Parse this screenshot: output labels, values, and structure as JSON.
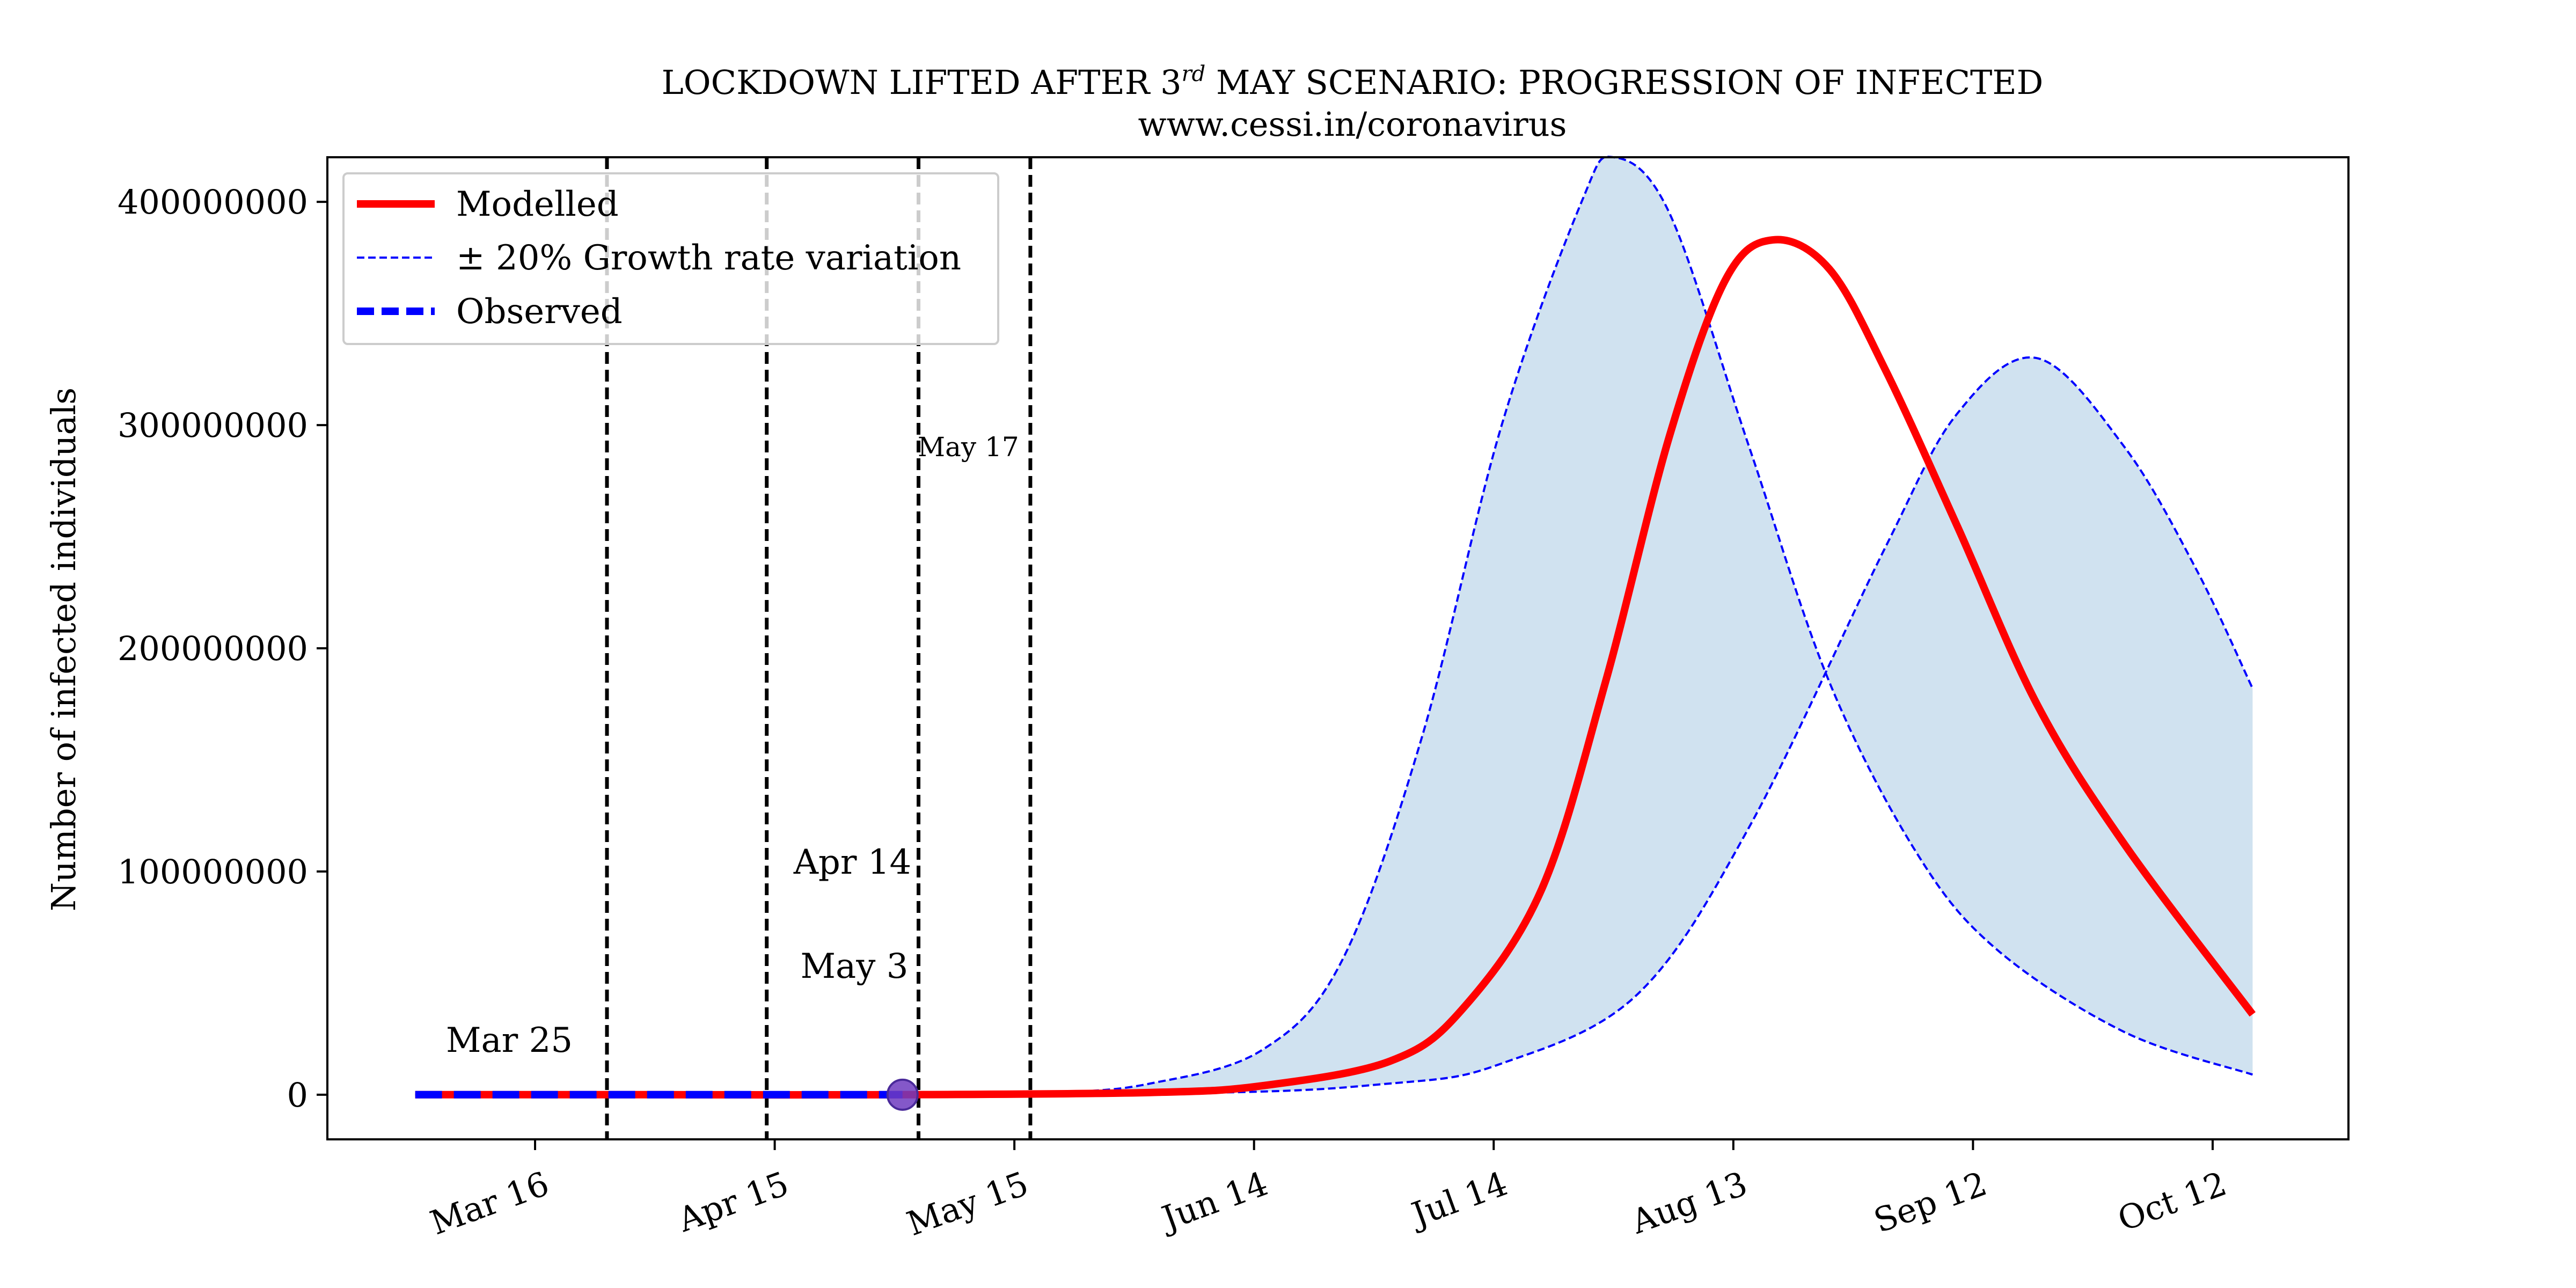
{
  "chart_data": {
    "type": "line",
    "title_main": "LOCKDOWN LIFTED AFTER 3",
    "title_sup": "rd",
    "title_rest": " MAY SCENARIO: PROGRESSION OF INFECTED",
    "subtitle": "www.cessi.in/coronavirus",
    "xlabel": "",
    "ylabel": "Number of infected individuals",
    "ylim": [
      -20000000,
      420000000
    ],
    "yticks": [
      0,
      100000000,
      200000000,
      300000000,
      400000000
    ],
    "ytick_labels": [
      "0",
      "100000000",
      "200000000",
      "300000000",
      "400000000"
    ],
    "xlim": [
      "2020-02-19",
      "2020-10-29"
    ],
    "xticks": [
      "2020-03-16",
      "2020-04-15",
      "2020-05-15",
      "2020-06-14",
      "2020-07-14",
      "2020-08-13",
      "2020-09-12",
      "2020-10-12"
    ],
    "xtick_labels": [
      "Mar 16",
      "Apr 15",
      "May 15",
      "Jun 14",
      "Jul 14",
      "Aug 13",
      "Sep 12",
      "Oct 12"
    ],
    "grid": false,
    "legend_position": "top-left",
    "legend": [
      {
        "label": "Modelled",
        "style": "solid",
        "color": "#ff0000"
      },
      {
        "label": "± 20% Growth rate variation",
        "style": "dashed-thin",
        "color": "#0000ff"
      },
      {
        "label": "Observed",
        "style": "dashed-thick",
        "color": "#0000ff"
      }
    ],
    "vlines": [
      {
        "date": "2020-03-25",
        "label": "Mar 25"
      },
      {
        "date": "2020-04-14",
        "label": "Apr 14"
      },
      {
        "date": "2020-05-03",
        "label": "May 3"
      },
      {
        "date": "2020-05-17",
        "label": "May 17"
      }
    ],
    "marker": {
      "date": "2020-05-01",
      "value": 0,
      "color": "#6f3bbf"
    },
    "fill_color": "#d0e2f0",
    "series": [
      {
        "name": "Modelled",
        "color": "#ff0000",
        "x": [
          "2020-03-01",
          "2020-04-01",
          "2020-05-01",
          "2020-06-01",
          "2020-06-15",
          "2020-07-01",
          "2020-07-10",
          "2020-07-20",
          "2020-07-28",
          "2020-08-05",
          "2020-08-12",
          "2020-08-18",
          "2020-08-25",
          "2020-09-01",
          "2020-09-10",
          "2020-09-20",
          "2020-10-01",
          "2020-10-17"
        ],
        "values": [
          0,
          0,
          0,
          1000000,
          4000000,
          15000000,
          38000000,
          92000000,
          185000000,
          295000000,
          365000000,
          383000000,
          370000000,
          325000000,
          255000000,
          175000000,
          112000000,
          36000000
        ]
      },
      {
        "name": "± 20% Growth rate variation",
        "color": "#0000ff",
        "x": [
          "2020-03-01",
          "2020-05-01",
          "2020-05-20",
          "2020-06-01",
          "2020-06-15",
          "2020-06-25",
          "2020-07-05",
          "2020-07-15",
          "2020-07-25",
          "2020-07-29",
          "2020-08-05",
          "2020-08-15",
          "2020-08-25",
          "2020-09-05",
          "2020-09-15",
          "2020-10-01",
          "2020-10-17"
        ],
        "values": [
          0,
          0,
          1000000,
          5000000,
          20000000,
          60000000,
          160000000,
          300000000,
          400000000,
          420000000,
          395000000,
          290000000,
          185000000,
          108000000,
          65000000,
          28000000,
          9000000
        ]
      },
      {
        "name": "± 20% Growth rate variation",
        "color": "#0000ff",
        "x": [
          "2020-03-01",
          "2020-06-01",
          "2020-07-01",
          "2020-07-15",
          "2020-08-01",
          "2020-08-15",
          "2020-09-01",
          "2020-09-10",
          "2020-09-20",
          "2020-10-01",
          "2020-10-10",
          "2020-10-17"
        ],
        "values": [
          0,
          500000,
          5000000,
          14000000,
          45000000,
          120000000,
          245000000,
          305000000,
          330000000,
          290000000,
          235000000,
          182000000
        ]
      },
      {
        "name": "Observed",
        "color": "#0000ff",
        "x": [
          "2020-03-01",
          "2020-05-01"
        ],
        "values": [
          0,
          0
        ]
      }
    ]
  }
}
